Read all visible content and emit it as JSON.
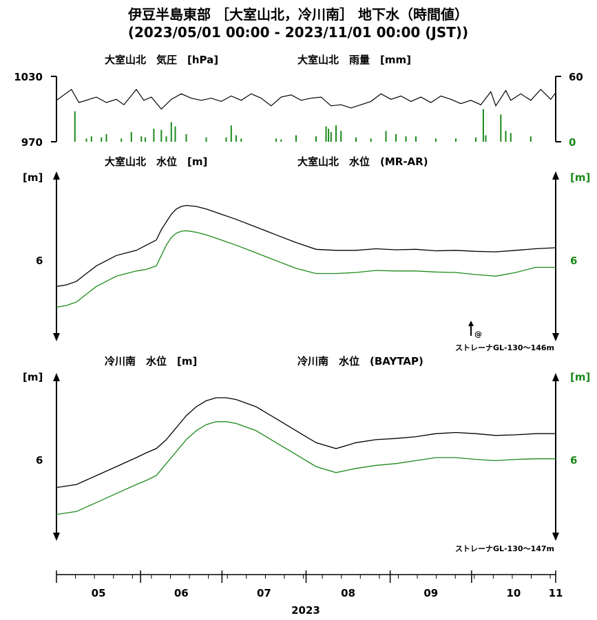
{
  "header": {
    "title": "伊豆半島東部 ［大室山北，冷川南］ 地下水（時間値）",
    "subtitle": "(2023/05/01 00:00 - 2023/11/01 00:00 (JST))"
  },
  "colors": {
    "primary": "#000000",
    "secondary": "#1a8a1a"
  },
  "chart_data": [
    {
      "type": "line",
      "panel": "pressure-rain",
      "label_left": "大室山北　気圧　[hPa]",
      "label_right": "大室山北　雨量　[mm]",
      "y_left": {
        "min": 970,
        "max": 1030,
        "ticks": [
          "1030",
          "970"
        ]
      },
      "y_right": {
        "min": 0,
        "max": 60,
        "ticks": [
          "60",
          "0"
        ]
      },
      "series": [
        {
          "axis": "left",
          "color": "#000000",
          "x": [
            0.0,
            0.03,
            0.045,
            0.08,
            0.1,
            0.12,
            0.135,
            0.16,
            0.175,
            0.19,
            0.21,
            0.23,
            0.25,
            0.27,
            0.29,
            0.31,
            0.33,
            0.35,
            0.37,
            0.39,
            0.41,
            0.43,
            0.45,
            0.47,
            0.49,
            0.51,
            0.53,
            0.55,
            0.57,
            0.59,
            0.61,
            0.63,
            0.65,
            0.67,
            0.69,
            0.71,
            0.73,
            0.75,
            0.77,
            0.79,
            0.81,
            0.83,
            0.85,
            0.87,
            0.88,
            0.9,
            0.91,
            0.93,
            0.95,
            0.97,
            0.99,
            1.0
          ],
          "y": [
            1008,
            1018,
            1006,
            1011,
            1006,
            1009,
            1004,
            1018,
            1008,
            1011,
            1000,
            1009,
            1014,
            1010,
            1008,
            1010,
            1007,
            1012,
            1008,
            1014,
            1010,
            1003,
            1011,
            1013,
            1008,
            1010,
            1011,
            1003,
            1004,
            1001,
            1004,
            1007,
            1014,
            1009,
            1012,
            1007,
            1011,
            1006,
            1012,
            1009,
            1005,
            1008,
            1004,
            1016,
            1003,
            1017,
            1008,
            1014,
            1008,
            1018,
            1009,
            1015
          ]
        },
        {
          "axis": "right",
          "color": "#1a8a1a",
          "type": "bar",
          "x": [
            0.037,
            0.06,
            0.07,
            0.09,
            0.1,
            0.13,
            0.15,
            0.17,
            0.178,
            0.195,
            0.21,
            0.22,
            0.23,
            0.238,
            0.26,
            0.3,
            0.34,
            0.35,
            0.36,
            0.37,
            0.44,
            0.45,
            0.48,
            0.52,
            0.54,
            0.545,
            0.55,
            0.56,
            0.57,
            0.6,
            0.63,
            0.66,
            0.68,
            0.7,
            0.72,
            0.76,
            0.8,
            0.84,
            0.855,
            0.86,
            0.89,
            0.9,
            0.9,
            0.91,
            0.95
          ],
          "y": [
            28,
            3,
            5,
            4,
            7,
            3,
            9,
            5,
            4,
            12,
            11,
            5,
            18,
            14,
            7,
            4,
            4,
            15,
            6,
            3,
            3,
            2,
            6,
            5,
            14,
            12,
            9,
            15,
            10,
            4,
            3,
            10,
            7,
            5,
            5,
            3,
            3,
            4,
            30,
            6,
            25,
            6,
            10,
            8,
            5
          ]
        }
      ]
    },
    {
      "type": "line",
      "panel": "omuroyama-water",
      "label_left": "大室山北　水位　[m]",
      "label_right": "大室山北　水位　(MR-AR)",
      "unit_left": "[m]",
      "unit_right": "[m]",
      "tick_left": "6",
      "tick_right": "6",
      "screen_note": "ストレーナGL-130〜146m",
      "marker_note": "@",
      "series": [
        {
          "color": "#000000",
          "x": [
            0.0,
            0.02,
            0.04,
            0.06,
            0.08,
            0.1,
            0.12,
            0.14,
            0.16,
            0.18,
            0.2,
            0.21,
            0.22,
            0.23,
            0.24,
            0.25,
            0.26,
            0.28,
            0.3,
            0.33,
            0.36,
            0.4,
            0.44,
            0.48,
            0.52,
            0.56,
            0.6,
            0.64,
            0.68,
            0.72,
            0.76,
            0.8,
            0.84,
            0.88,
            0.92,
            0.96,
            1.0
          ],
          "y": [
            5.45,
            5.48,
            5.55,
            5.7,
            5.85,
            5.95,
            6.05,
            6.1,
            6.15,
            6.25,
            6.35,
            6.55,
            6.7,
            6.85,
            6.95,
            7.0,
            7.02,
            7.0,
            6.95,
            6.85,
            6.75,
            6.6,
            6.45,
            6.3,
            6.17,
            6.15,
            6.15,
            6.18,
            6.16,
            6.17,
            6.14,
            6.15,
            6.13,
            6.12,
            6.15,
            6.18,
            6.2
          ]
        },
        {
          "color": "#1a8a1a",
          "x": [
            0.0,
            0.02,
            0.04,
            0.06,
            0.08,
            0.1,
            0.12,
            0.14,
            0.16,
            0.18,
            0.2,
            0.21,
            0.22,
            0.23,
            0.24,
            0.25,
            0.26,
            0.28,
            0.3,
            0.33,
            0.36,
            0.4,
            0.44,
            0.48,
            0.52,
            0.56,
            0.6,
            0.64,
            0.68,
            0.72,
            0.76,
            0.8,
            0.84,
            0.88,
            0.92,
            0.96,
            1.0
          ],
          "y": [
            5.05,
            5.08,
            5.15,
            5.3,
            5.45,
            5.55,
            5.65,
            5.7,
            5.75,
            5.78,
            5.85,
            6.05,
            6.25,
            6.4,
            6.48,
            6.52,
            6.53,
            6.5,
            6.45,
            6.35,
            6.25,
            6.1,
            5.95,
            5.8,
            5.7,
            5.7,
            5.72,
            5.76,
            5.75,
            5.75,
            5.73,
            5.72,
            5.68,
            5.65,
            5.72,
            5.82,
            5.82
          ]
        }
      ]
    },
    {
      "type": "line",
      "panel": "hiekawa-water",
      "label_left": "冷川南　水位　[m]",
      "label_right": "冷川南　水位　(BAYTAP)",
      "unit_left": "[m]",
      "unit_right": "[m]",
      "tick_left": "6",
      "tick_right": "6",
      "screen_note": "ストレーナGL-130〜147m",
      "series": [
        {
          "color": "#000000",
          "x": [
            0.0,
            0.04,
            0.08,
            0.12,
            0.16,
            0.18,
            0.2,
            0.22,
            0.24,
            0.26,
            0.28,
            0.3,
            0.32,
            0.34,
            0.36,
            0.4,
            0.44,
            0.48,
            0.52,
            0.56,
            0.6,
            0.64,
            0.68,
            0.72,
            0.76,
            0.8,
            0.84,
            0.88,
            0.92,
            0.96,
            1.0
          ],
          "y": [
            5.5,
            5.55,
            5.7,
            5.85,
            6.0,
            6.08,
            6.15,
            6.3,
            6.5,
            6.7,
            6.85,
            6.95,
            7.0,
            7.0,
            6.97,
            6.85,
            6.65,
            6.45,
            6.25,
            6.15,
            6.25,
            6.3,
            6.32,
            6.35,
            6.4,
            6.42,
            6.4,
            6.37,
            6.38,
            6.4,
            6.4
          ]
        },
        {
          "color": "#1a8a1a",
          "x": [
            0.0,
            0.04,
            0.08,
            0.12,
            0.16,
            0.18,
            0.2,
            0.22,
            0.24,
            0.26,
            0.28,
            0.3,
            0.32,
            0.34,
            0.36,
            0.4,
            0.44,
            0.48,
            0.52,
            0.56,
            0.6,
            0.64,
            0.68,
            0.72,
            0.76,
            0.8,
            0.84,
            0.88,
            0.92,
            0.96,
            1.0
          ],
          "y": [
            5.05,
            5.1,
            5.25,
            5.4,
            5.55,
            5.62,
            5.7,
            5.9,
            6.1,
            6.3,
            6.45,
            6.55,
            6.6,
            6.6,
            6.57,
            6.45,
            6.25,
            6.05,
            5.85,
            5.75,
            5.82,
            5.87,
            5.9,
            5.95,
            6.0,
            6.0,
            5.97,
            5.95,
            5.97,
            5.98,
            5.98
          ]
        }
      ]
    }
  ],
  "x_axis": {
    "months": [
      "05",
      "06",
      "07",
      "08",
      "09",
      "10",
      "11"
    ],
    "year": "2023"
  }
}
